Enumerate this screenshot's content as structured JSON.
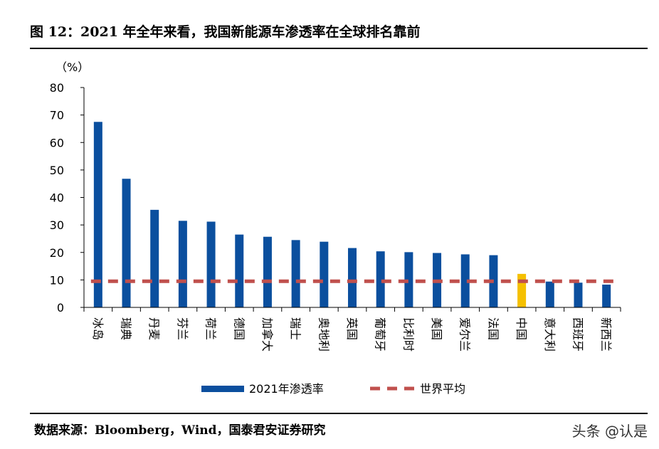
{
  "header": {
    "title": "图 12：2021 年全年来看，我国新能源车渗透率在全球排名靠前"
  },
  "footer": {
    "source": "数据来源：Bloomberg，Wind，国泰君安证券研究",
    "watermark": "头条 @认是"
  },
  "colors": {
    "bar": "#0b4f9e",
    "highlight": "#f5c000",
    "average_line": "#c0504d"
  },
  "chart_data": {
    "type": "bar",
    "unit_label": "（%）",
    "categories": [
      "冰岛",
      "瑞典",
      "丹麦",
      "芬兰",
      "荷兰",
      "德国",
      "加拿大",
      "瑞士",
      "奥地利",
      "英国",
      "葡萄牙",
      "比利时",
      "美国",
      "爱尔兰",
      "法国",
      "中国",
      "意大利",
      "西班牙",
      "新西兰"
    ],
    "series": [
      {
        "name": "2021年渗透率",
        "values": [
          67.5,
          46.8,
          35.5,
          31.5,
          31.2,
          26.5,
          25.7,
          24.5,
          23.9,
          21.6,
          20.4,
          20.1,
          19.8,
          19.3,
          19.0,
          12.2,
          9.4,
          9.0,
          8.3
        ],
        "highlight_category": "中国"
      },
      {
        "name": "世界平均",
        "type": "line",
        "style": "dashed",
        "value": 9.5
      }
    ],
    "ylim": [
      0,
      80
    ],
    "yticks": [
      0,
      10,
      20,
      30,
      40,
      50,
      60,
      70,
      80
    ],
    "legend_position": "bottom"
  }
}
